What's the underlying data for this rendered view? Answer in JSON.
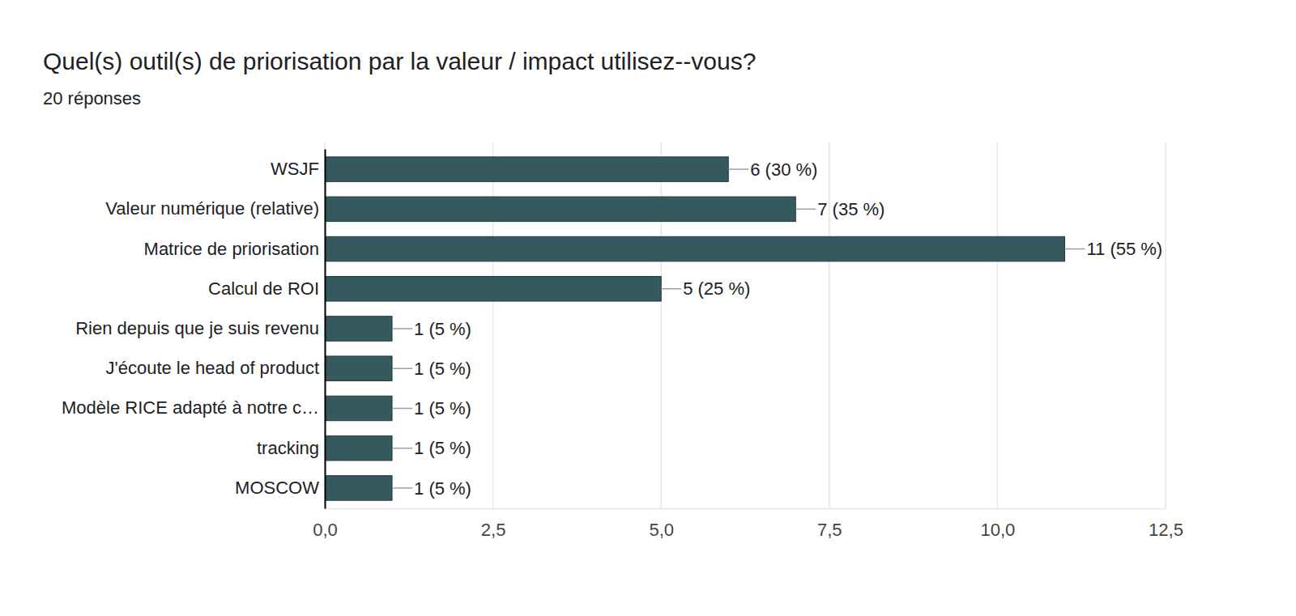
{
  "chart_data": {
    "type": "bar",
    "orientation": "horizontal",
    "title": "Quel(s) outil(s) de priorisation par la valeur / impact utilisez--vous?",
    "subtitle": "20 réponses",
    "categories": [
      "WSJF",
      "Valeur numérique (relative)",
      "Matrice de priorisation",
      "Calcul de ROI",
      "Rien depuis que je suis revenu",
      "J'écoute le head of product",
      "Modèle RICE adapté à notre c…",
      "tracking",
      "MOSCOW"
    ],
    "values": [
      6,
      7,
      11,
      5,
      1,
      1,
      1,
      1,
      1
    ],
    "value_labels": [
      "6 (30 %)",
      "7 (35 %)",
      "11 (55 %)",
      "5 (25 %)",
      "1 (5 %)",
      "1 (5 %)",
      "1 (5 %)",
      "1 (5 %)",
      "1 (5 %)"
    ],
    "color": "#35595e",
    "xlim": [
      0,
      12.5
    ],
    "xticks": [
      {
        "value": 0,
        "label": "0,0"
      },
      {
        "value": 2.5,
        "label": "2,5"
      },
      {
        "value": 5,
        "label": "5,0"
      },
      {
        "value": 7.5,
        "label": "7,5"
      },
      {
        "value": 10,
        "label": "10,0"
      },
      {
        "value": 12.5,
        "label": "12,5"
      }
    ],
    "grid": true,
    "data_labels": true
  }
}
